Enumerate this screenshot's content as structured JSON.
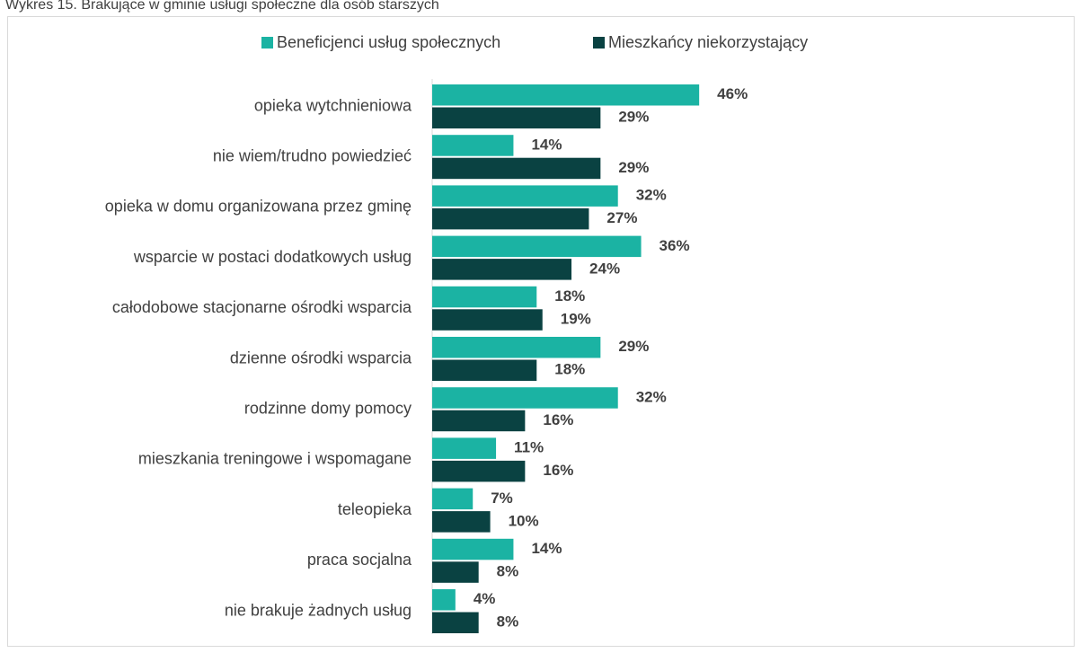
{
  "chart_data": {
    "type": "bar",
    "orientation": "horizontal",
    "title": "Wykres 15. Brakujące w gminie usługi społeczne dla osób starszych",
    "categories": [
      "opieka wytchnieniowa",
      "nie wiem/trudno powiedzieć",
      "opieka w domu organizowana przez gminę",
      "wsparcie w postaci dodatkowych usług",
      "całodobowe stacjonarne ośrodki wsparcia",
      "dzienne ośrodki wsparcia",
      "rodzinne domy pomocy",
      "mieszkania treningowe i wspomagane",
      "teleopieka",
      "praca socjalna",
      "nie brakuje żadnych usług"
    ],
    "series": [
      {
        "name": "Beneficjenci usług społecznych",
        "color": "#1bb3a3",
        "values": [
          46,
          14,
          32,
          36,
          18,
          29,
          32,
          11,
          7,
          14,
          4
        ],
        "value_labels": [
          "46%",
          "14%",
          "32%",
          "36%",
          "18%",
          "29%",
          "32%",
          "11%",
          "7%",
          "14%",
          "4%"
        ]
      },
      {
        "name": "Mieszkańcy niekorzystający",
        "color": "#0a4242",
        "values": [
          29,
          29,
          27,
          24,
          19,
          18,
          16,
          16,
          10,
          8,
          8
        ],
        "value_labels": [
          "29%",
          "29%",
          "27%",
          "24%",
          "19%",
          "18%",
          "16%",
          "16%",
          "10%",
          "8%",
          "8%"
        ]
      }
    ],
    "legend": "top"
  }
}
